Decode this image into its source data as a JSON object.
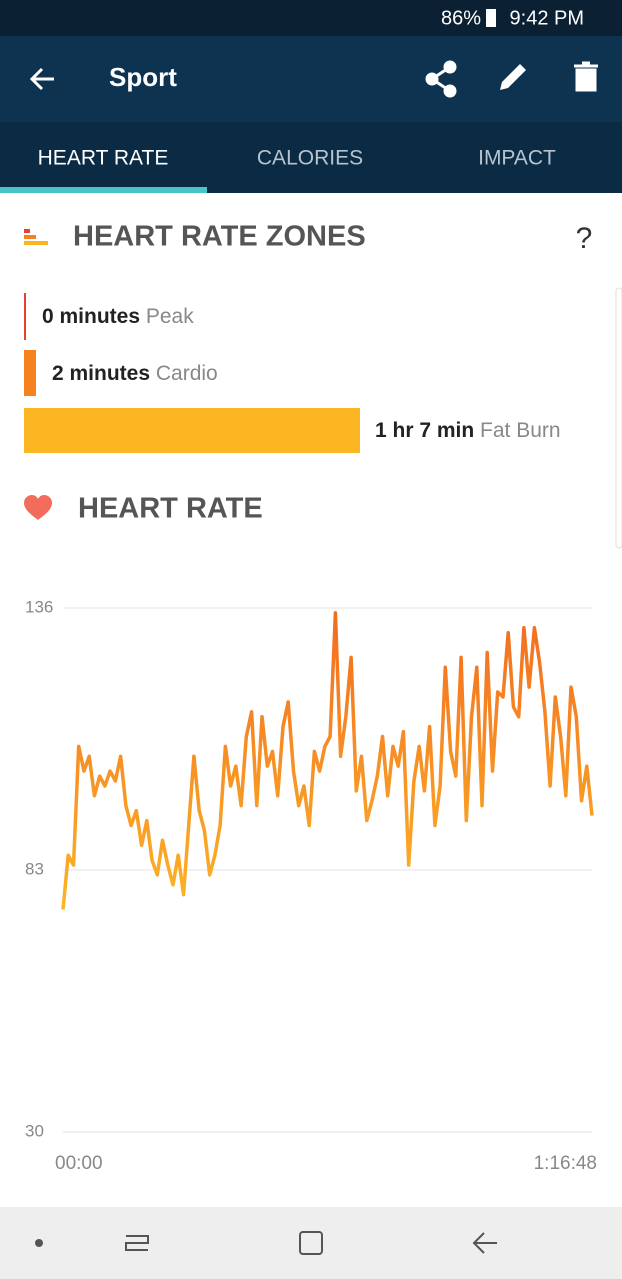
{
  "status_bar": {
    "battery": "86%",
    "time": "9:42 PM"
  },
  "app_bar": {
    "title": "Sport"
  },
  "tabs": [
    "HEART RATE",
    "CALORIES",
    "IMPACT"
  ],
  "zones": {
    "title": "HEART RATE ZONES",
    "help": "?",
    "items": [
      {
        "amount": "0 minutes",
        "name": "Peak"
      },
      {
        "amount": "2 minutes",
        "name": "Cardio"
      },
      {
        "amount": "1 hr 7 min",
        "name": "Fat Burn"
      }
    ]
  },
  "chart_data": {
    "type": "line",
    "title": "HEART RATE",
    "x_labels": [
      "00:00",
      "1:16:48"
    ],
    "ylim": [
      30,
      136
    ],
    "yticks": [
      30,
      83,
      136
    ],
    "grid": true,
    "gradient": [
      "#f26b21",
      "#fcb426"
    ],
    "values": [
      75,
      86,
      84,
      108,
      103,
      106,
      98,
      102,
      100,
      103,
      101,
      106,
      96,
      92,
      95,
      88,
      93,
      85,
      82,
      89,
      84,
      80,
      86,
      78,
      92,
      106,
      95,
      91,
      82,
      86,
      92,
      108,
      100,
      104,
      96,
      110,
      115,
      96,
      114,
      104,
      107,
      98,
      112,
      117,
      103,
      96,
      100,
      92,
      107,
      103,
      108,
      110,
      135,
      106,
      114,
      126,
      99,
      106,
      93,
      97,
      102,
      110,
      98,
      108,
      104,
      111,
      84,
      101,
      108,
      99,
      112,
      92,
      100,
      124,
      107,
      102,
      126,
      93,
      114,
      124,
      96,
      127,
      103,
      119,
      118,
      131,
      116,
      114,
      132,
      120,
      132,
      125,
      115,
      100,
      118,
      110,
      98,
      120,
      114,
      97,
      104,
      94
    ]
  }
}
